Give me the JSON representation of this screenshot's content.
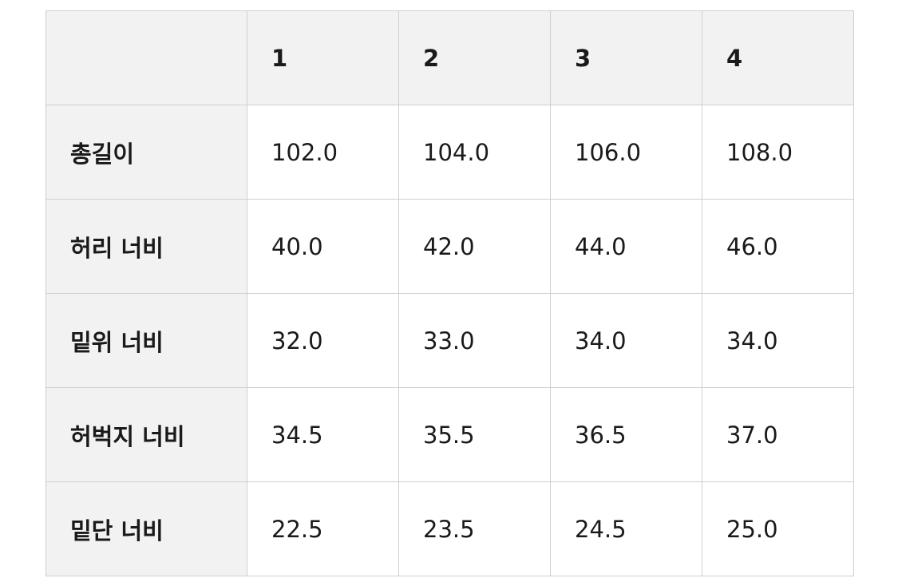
{
  "table": {
    "header": [
      "",
      "1",
      "2",
      "3",
      "4"
    ],
    "rows": [
      {
        "label": "총길이",
        "values": [
          "102.0",
          "104.0",
          "106.0",
          "108.0"
        ]
      },
      {
        "label": "허리 너비",
        "values": [
          "40.0",
          "42.0",
          "44.0",
          "46.0"
        ]
      },
      {
        "label": "밑위 너비",
        "values": [
          "32.0",
          "33.0",
          "34.0",
          "34.0"
        ]
      },
      {
        "label": "허벅지 너비",
        "values": [
          "34.5",
          "35.5",
          "36.5",
          "37.0"
        ]
      },
      {
        "label": "밑단 너비",
        "values": [
          "22.5",
          "23.5",
          "24.5",
          "25.0"
        ]
      }
    ]
  }
}
